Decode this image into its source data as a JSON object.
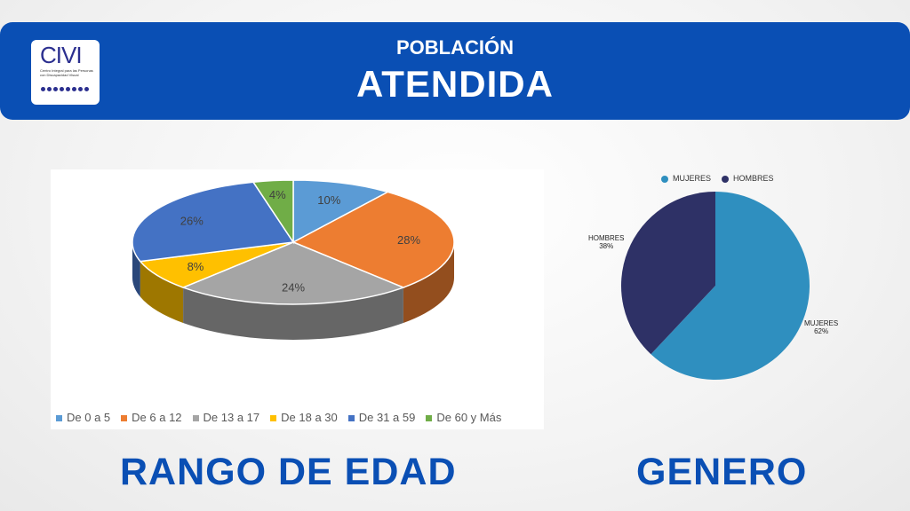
{
  "header": {
    "logo_text": "CIVI",
    "logo_subtitle": "Centro Integral para las Personas con Discapacidad Visual",
    "subtitle": "POBLACIÓN",
    "title": "ATENDIDA"
  },
  "titles": {
    "left": "RANGO DE EDAD",
    "right": "GENERO"
  },
  "chart_data": [
    {
      "type": "pie",
      "style": "3d",
      "categories": [
        "De 0 a 5",
        "De 6 a 12",
        "De 13 a 17",
        "De 18 a 30",
        "De 31 a 59",
        "De 60 y Más"
      ],
      "values": [
        10,
        28,
        24,
        8,
        26,
        4
      ],
      "labels": [
        "10%",
        "28%",
        "24%",
        "8%",
        "26%",
        "4%"
      ],
      "colors": [
        "#5b9bd5",
        "#ed7d31",
        "#a5a5a5",
        "#ffc000",
        "#4472c4",
        "#70ad47"
      ],
      "legend_position": "bottom"
    },
    {
      "type": "pie",
      "categories": [
        "MUJERES",
        "HOMBRES"
      ],
      "values": [
        62,
        38
      ],
      "labels": [
        "MUJERES\n62%",
        "HOMBRES\n38%"
      ],
      "colors": [
        "#2f8fbf",
        "#2e3166"
      ],
      "legend_position": "top"
    }
  ]
}
